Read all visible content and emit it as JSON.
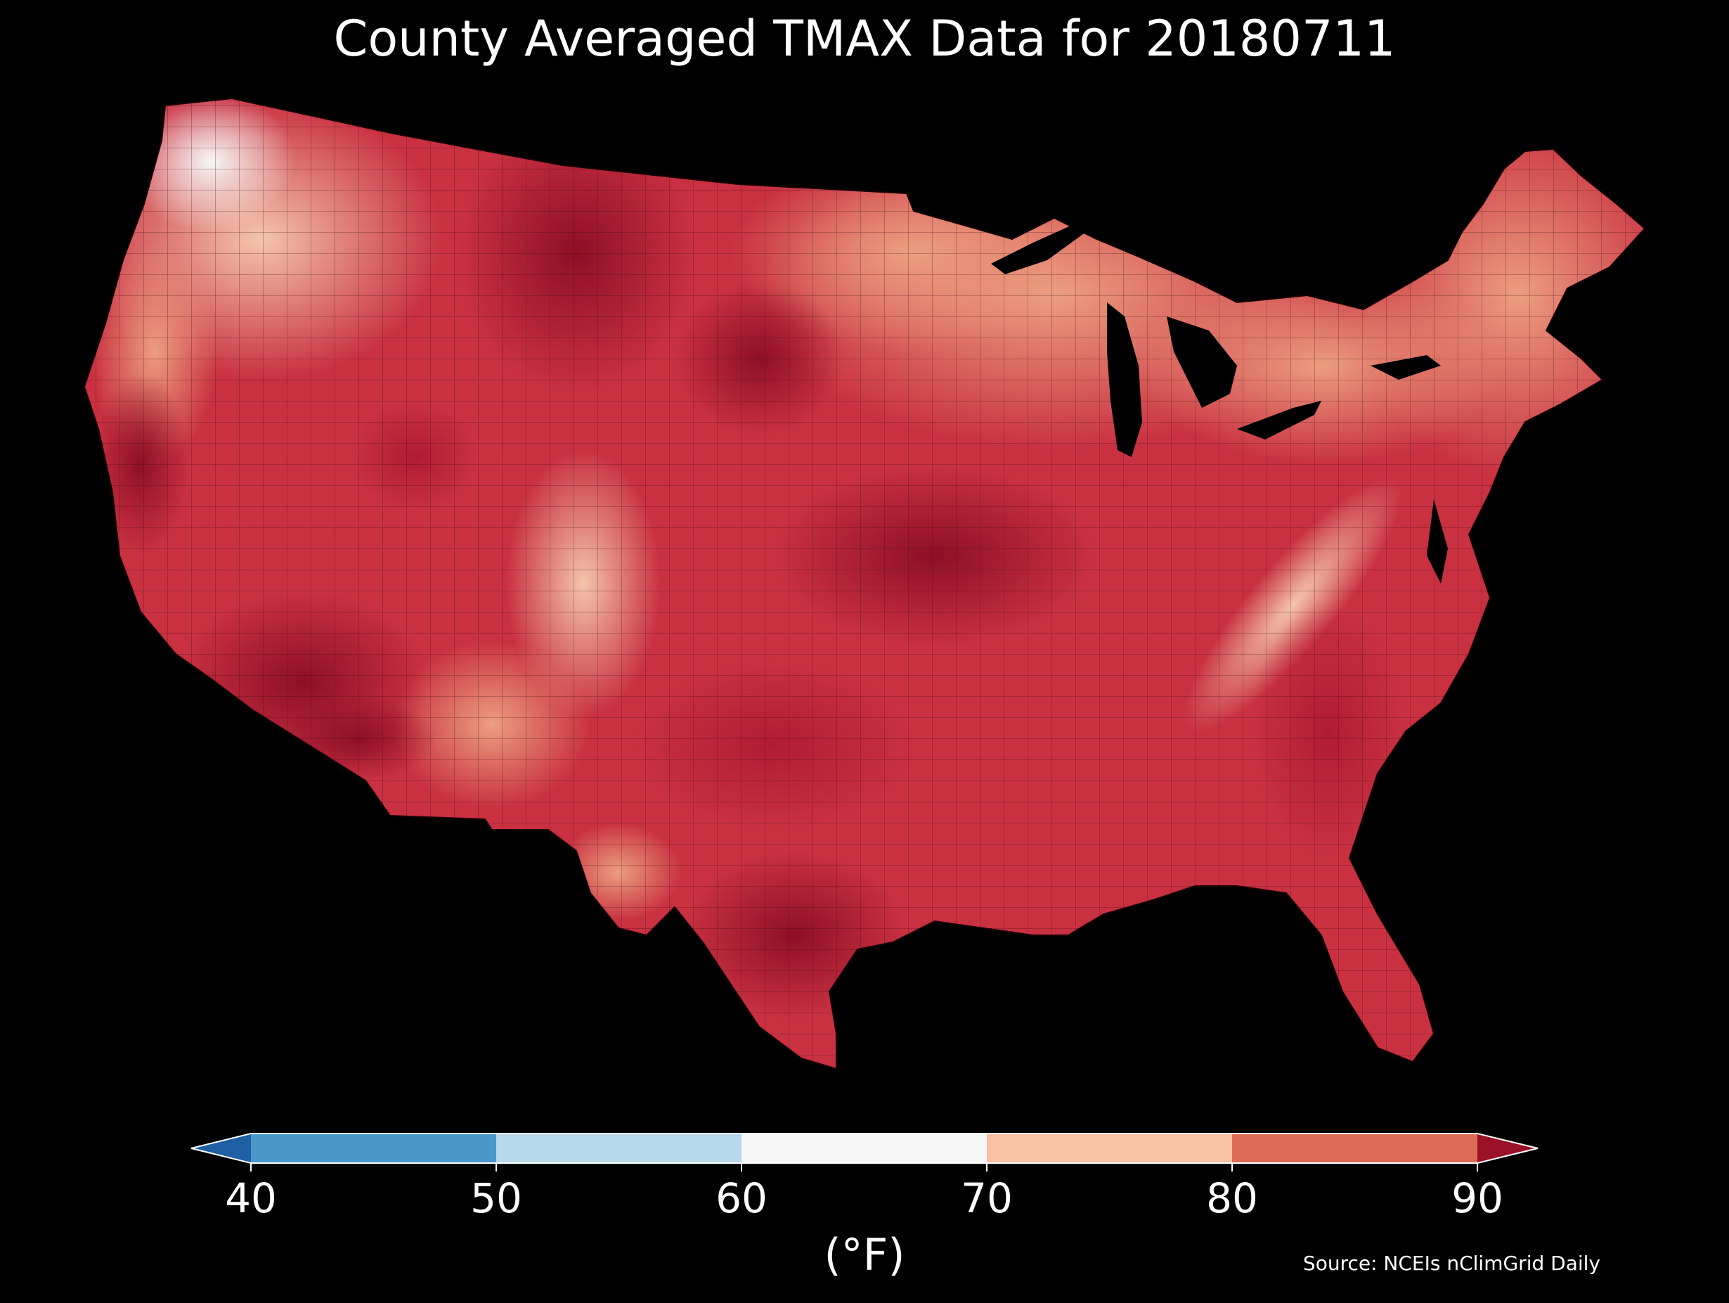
{
  "title": "County Averaged TMAX Data for 20180711",
  "source": "Source: NCEIs nClimGrid Daily",
  "colorbar": {
    "unit": "(°F)",
    "ticks": [
      "40",
      "50",
      "60",
      "70",
      "80",
      "90"
    ],
    "colors": {
      "under": "#1f5fa3",
      "c40_50": "#4a98c9",
      "c50_60": "#b7d8ea",
      "c60_70": "#f7f7f7",
      "c70_80": "#f9c1a4",
      "c80_90": "#dc6b55",
      "over": "#9a1128"
    },
    "extend": "both"
  },
  "map": {
    "region": "contiguous-us",
    "colors": {
      "cold_pnw": "#f4f4f4",
      "pale": "#f4c5ad",
      "light": "#ec9e80",
      "mid": "#d9624f",
      "hot": "#c0283a",
      "hottest": "#8e0f26",
      "lake": "#000000",
      "border": "#3a0b10"
    }
  }
}
